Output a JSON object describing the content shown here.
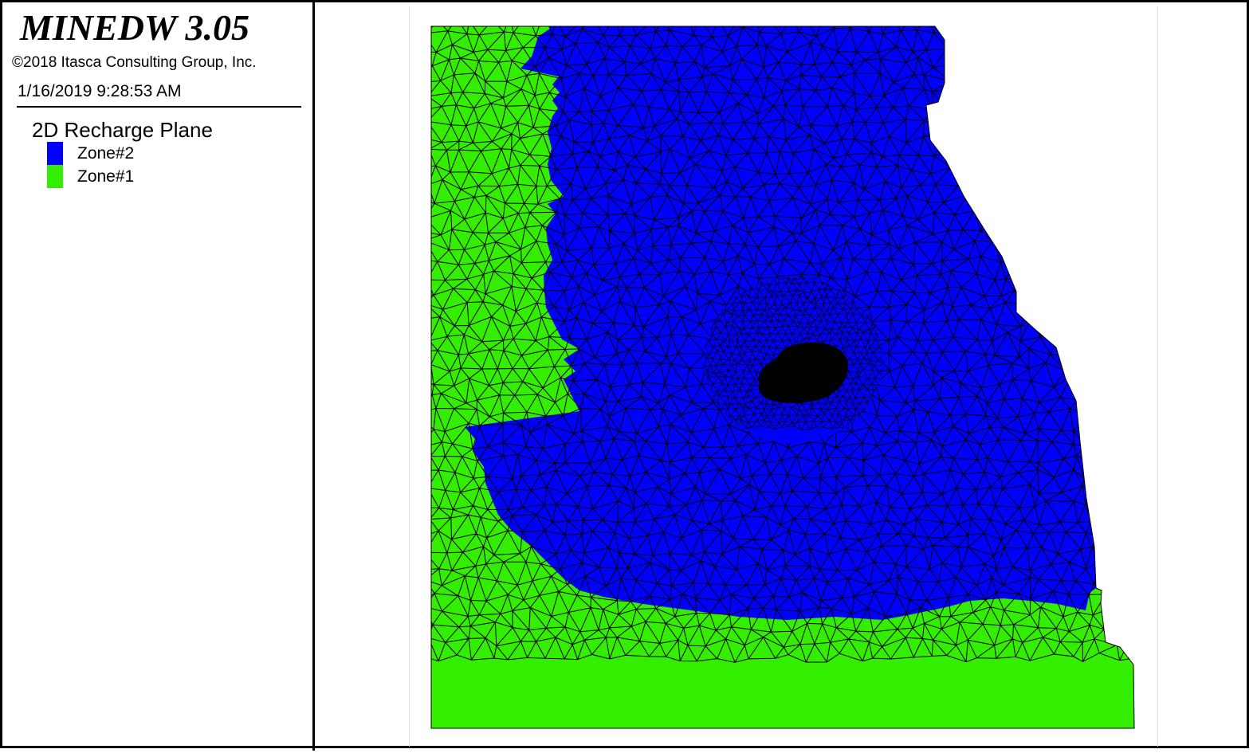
{
  "header": {
    "app_title": "MINEDW 3.05",
    "copyright": "©2018 Itasca Consulting Group, Inc.",
    "timestamp": "1/16/2019 9:28:53 AM"
  },
  "legend": {
    "title": "2D Recharge Plane",
    "items": [
      {
        "label": "Zone#2",
        "color": "#0000ff"
      },
      {
        "label": "Zone#1",
        "color": "#33ee00"
      }
    ]
  },
  "viewport": {
    "content": "finite-element mesh plan view",
    "zones": [
      {
        "name": "Zone#1",
        "color": "#33ee00"
      },
      {
        "name": "Zone#2",
        "color": "#0000ff"
      }
    ],
    "mesh_line_color": "#000000"
  }
}
